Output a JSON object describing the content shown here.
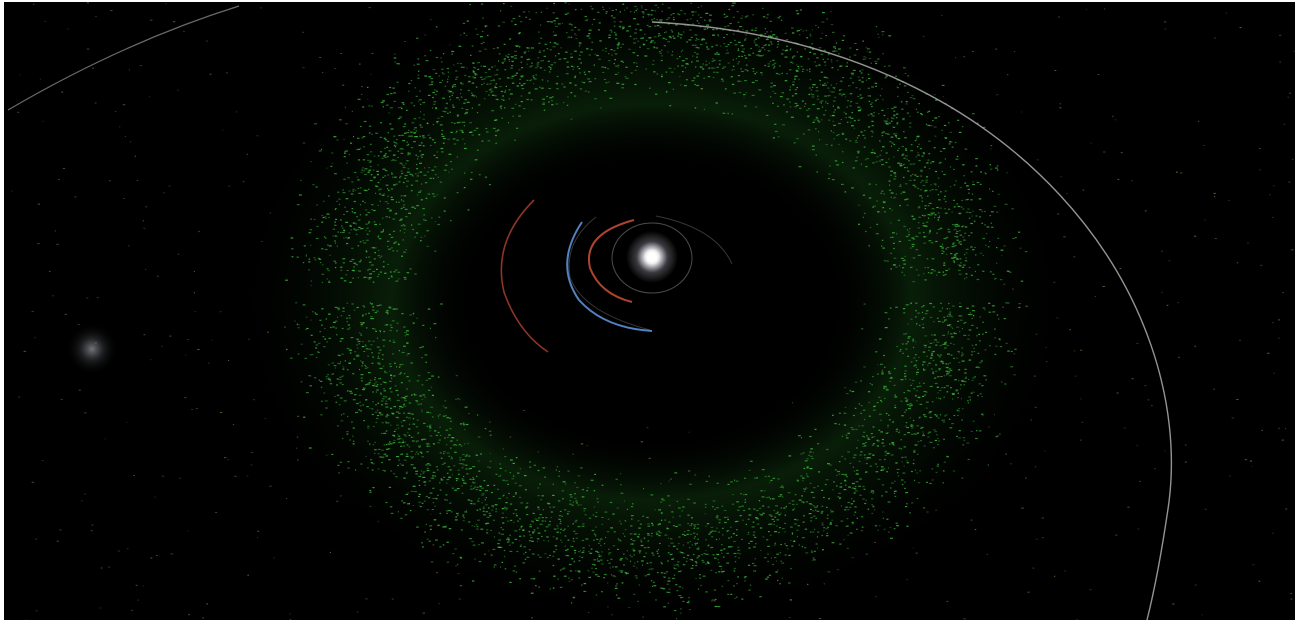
{
  "scene": {
    "subject": "asteroid-belt-visualization",
    "background_color": "#000000",
    "sun_color": "#ffffff",
    "belt_color": "#3fbf3f",
    "outer_scatter_color": "#9a8a55",
    "orbit_colors": {
      "inner_grey": "#8a8a8a",
      "red_small": "#c24a32",
      "blue": "#5c8fd6",
      "red_large": "#b0422f",
      "outer_grey": "#b8b8b8"
    },
    "glow_color": "#cfd4dc"
  }
}
